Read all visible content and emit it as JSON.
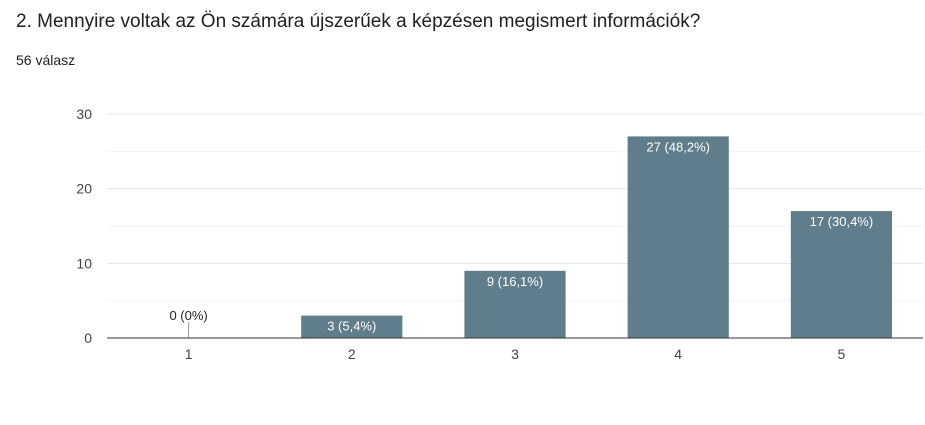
{
  "question": "2. Mennyire voltak az Ön számára újszerűek a képzésen megismert információk?",
  "response_count": "56 válasz",
  "colors": {
    "bar": "#607d8b",
    "grid": "#e6e6e6",
    "axis": "#333333",
    "label_inside": "#ffffff",
    "label_outside": "#222222"
  },
  "chart_data": {
    "type": "bar",
    "categories": [
      "1",
      "2",
      "3",
      "4",
      "5"
    ],
    "values": [
      0,
      3,
      9,
      27,
      17
    ],
    "data_labels": [
      "0 (0%)",
      "3 (5,4%)",
      "9 (16,1%)",
      "27 (48,2%)",
      "17 (30,4%)"
    ],
    "ylim": [
      0,
      30
    ],
    "yticks": [
      0,
      10,
      20,
      30
    ],
    "grid": true
  }
}
